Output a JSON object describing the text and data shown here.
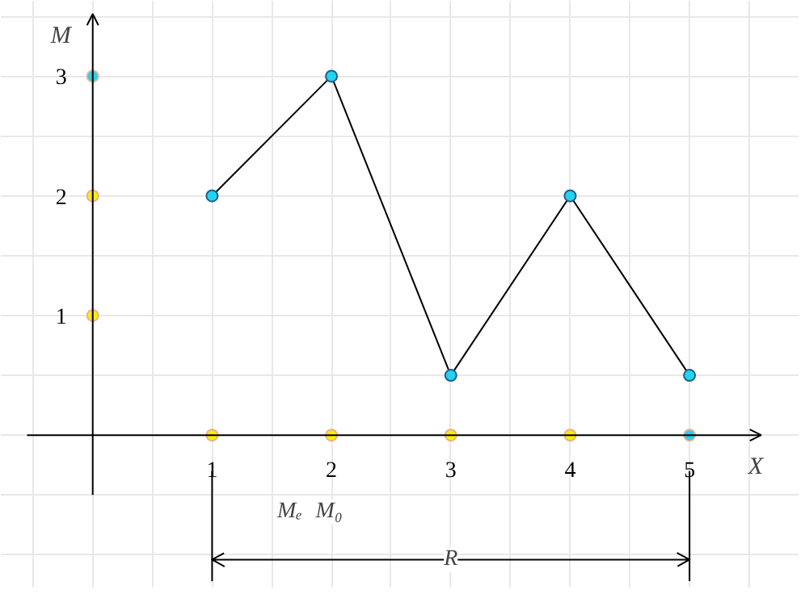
{
  "chart_data": {
    "type": "line",
    "xlabel": "X",
    "ylabel": "M",
    "xlim": [
      -0.77,
      5.92
    ],
    "ylim": [
      -1.28,
      3.63
    ],
    "xticks": [
      {
        "value": -0.5,
        "label": null
      },
      {
        "value": 0,
        "label": null
      },
      {
        "value": 0.5,
        "label": null
      },
      1,
      {
        "value": 1.5,
        "label": null
      },
      2,
      {
        "value": 2.5,
        "label": null
      },
      3,
      {
        "value": 3.5,
        "label": null
      },
      4,
      {
        "value": 4.5,
        "label": null
      },
      5,
      {
        "value": 5.5,
        "label": null
      }
    ],
    "yticks": [
      {
        "value": -1,
        "label": null
      },
      {
        "value": -0.5,
        "label": null
      },
      {
        "value": 0,
        "label": null
      },
      {
        "value": 0.5,
        "label": null
      },
      1,
      {
        "value": 1.5,
        "label": null
      },
      2,
      {
        "value": 2.5,
        "label": null
      },
      3,
      {
        "value": 3.5,
        "label": null
      }
    ],
    "grid": true,
    "marker": "circle",
    "series": [
      {
        "x": [
          1,
          2,
          3,
          4,
          5
        ],
        "values": [
          2,
          3,
          0.5,
          2,
          0.5
        ],
        "color": "#000000",
        "colors": [
          "#22d3ee",
          "#22d3ee",
          "#22d3ee",
          "#22d3ee",
          "#22d3ee"
        ]
      },
      {
        "type": "scatter",
        "x": [
          0,
          0,
          0,
          1,
          2,
          3,
          4,
          5
        ],
        "values": [
          1,
          2,
          3,
          0,
          0,
          0,
          0,
          0
        ],
        "colors": [
          "#ffee00",
          "#ffee00",
          "#22d3ee",
          "#ffee00",
          "#ffee00",
          "#ffee00",
          "#ffee00",
          "#22d3ee"
        ]
      }
    ],
    "annotations": [
      "Mₑ",
      "M₀",
      "R"
    ],
    "ref_lines": [
      {
        "axis": "x",
        "value": 1
      },
      {
        "axis": "x",
        "value": 5
      },
      {
        "axis": "y",
        "value": -1.04
      }
    ]
  }
}
